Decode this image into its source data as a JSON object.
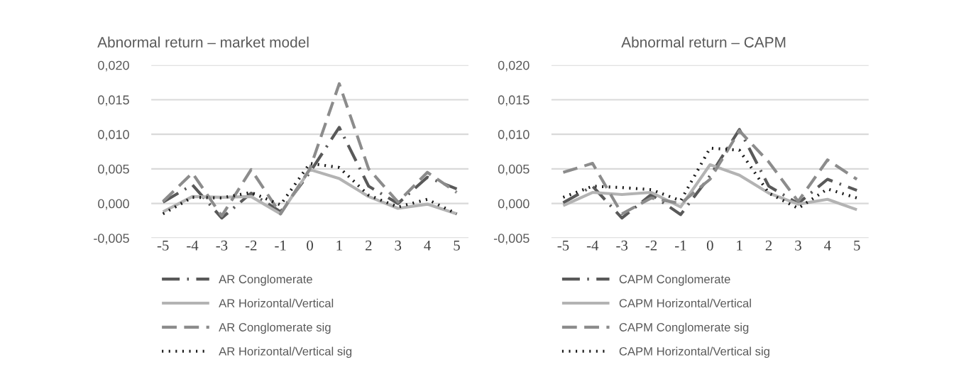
{
  "chart_data": [
    {
      "type": "line",
      "title": "Abnormal return – market model",
      "categories": [
        "-5",
        "-4",
        "-3",
        "-2",
        "-1",
        "0",
        "1",
        "2",
        "3",
        "4",
        "5"
      ],
      "ylim": [
        -0.005,
        0.02
      ],
      "yticks": [
        {
          "value": -0.005,
          "label": "-0,005"
        },
        {
          "value": 0,
          "label": "0,000"
        },
        {
          "value": 0.005,
          "label": "0,005"
        },
        {
          "value": 0.01,
          "label": "0,010"
        },
        {
          "value": 0.015,
          "label": "0,015"
        },
        {
          "value": 0.02,
          "label": "0,020"
        }
      ],
      "grid": "y",
      "legend": "bottom",
      "marker": "none",
      "series": [
        {
          "name": "AR Conglomerate",
          "color": "#595959",
          "line_style": "dashdot",
          "values": [
            0.0002,
            0.0027,
            -0.0021,
            0.0015,
            -0.0012,
            0.0045,
            0.011,
            0.0025,
            0.0,
            0.0038,
            0.0021
          ]
        },
        {
          "name": "AR Horizontal/Vertical",
          "color": "#b3b3b3",
          "line_style": "solid",
          "values": [
            -0.0012,
            0.001,
            0.0009,
            0.001,
            -0.0015,
            0.0049,
            0.0036,
            0.001,
            -0.0007,
            -0.0001,
            -0.0015
          ]
        },
        {
          "name": "AR Conglomerate sig",
          "color": "#8c8c8c",
          "line_style": "dashed",
          "values": [
            0.0003,
            0.0044,
            -0.0018,
            0.0049,
            -0.0015,
            0.005,
            0.0173,
            0.005,
            0.0002,
            0.0045,
            0.0016
          ]
        },
        {
          "name": "AR Horizontal/Vertical sig",
          "color": "#1a1a1a",
          "line_style": "dotted",
          "values": [
            -0.0015,
            0.0009,
            0.0008,
            0.0016,
            -0.0002,
            0.0058,
            0.0052,
            0.0012,
            -0.0005,
            0.0006,
            -0.0015
          ]
        }
      ]
    },
    {
      "type": "line",
      "title": "Abnormal return – CAPM",
      "categories": [
        "-5",
        "-4",
        "-3",
        "-2",
        "-1",
        "0",
        "1",
        "2",
        "3",
        "4",
        "5"
      ],
      "ylim": [
        -0.005,
        0.02
      ],
      "yticks": [
        {
          "value": -0.005,
          "label": "-0,005"
        },
        {
          "value": 0,
          "label": "0,000"
        },
        {
          "value": 0.005,
          "label": "0,005"
        },
        {
          "value": 0.01,
          "label": "0,010"
        },
        {
          "value": 0.015,
          "label": "0,015"
        },
        {
          "value": 0.02,
          "label": "0,020"
        }
      ],
      "grid": "y",
      "legend": "bottom",
      "marker": "none",
      "series": [
        {
          "name": "CAPM Conglomerate",
          "color": "#595959",
          "line_style": "dashdot",
          "values": [
            0.0001,
            0.0025,
            -0.0021,
            0.0013,
            -0.0016,
            0.004,
            0.0107,
            0.0025,
            0.0,
            0.0035,
            0.0019
          ]
        },
        {
          "name": "CAPM Horizontal/Vertical",
          "color": "#b3b3b3",
          "line_style": "solid",
          "values": [
            -0.0003,
            0.0016,
            0.0013,
            0.0016,
            -0.0005,
            0.0056,
            0.0041,
            0.0015,
            -0.0001,
            0.0006,
            -0.0009
          ]
        },
        {
          "name": "CAPM Conglomerate sig",
          "color": "#8c8c8c",
          "line_style": "dashed",
          "values": [
            0.0045,
            0.0058,
            -0.0015,
            0.0008,
            0.0,
            0.0035,
            0.0105,
            0.006,
            0.0003,
            0.0063,
            0.0035
          ]
        },
        {
          "name": "CAPM Horizontal/Vertical sig",
          "color": "#1a1a1a",
          "line_style": "dotted",
          "values": [
            0.0009,
            0.0025,
            0.0023,
            0.002,
            0.0004,
            0.008,
            0.0077,
            0.0015,
            -0.0007,
            0.0021,
            0.0008
          ]
        }
      ]
    }
  ]
}
